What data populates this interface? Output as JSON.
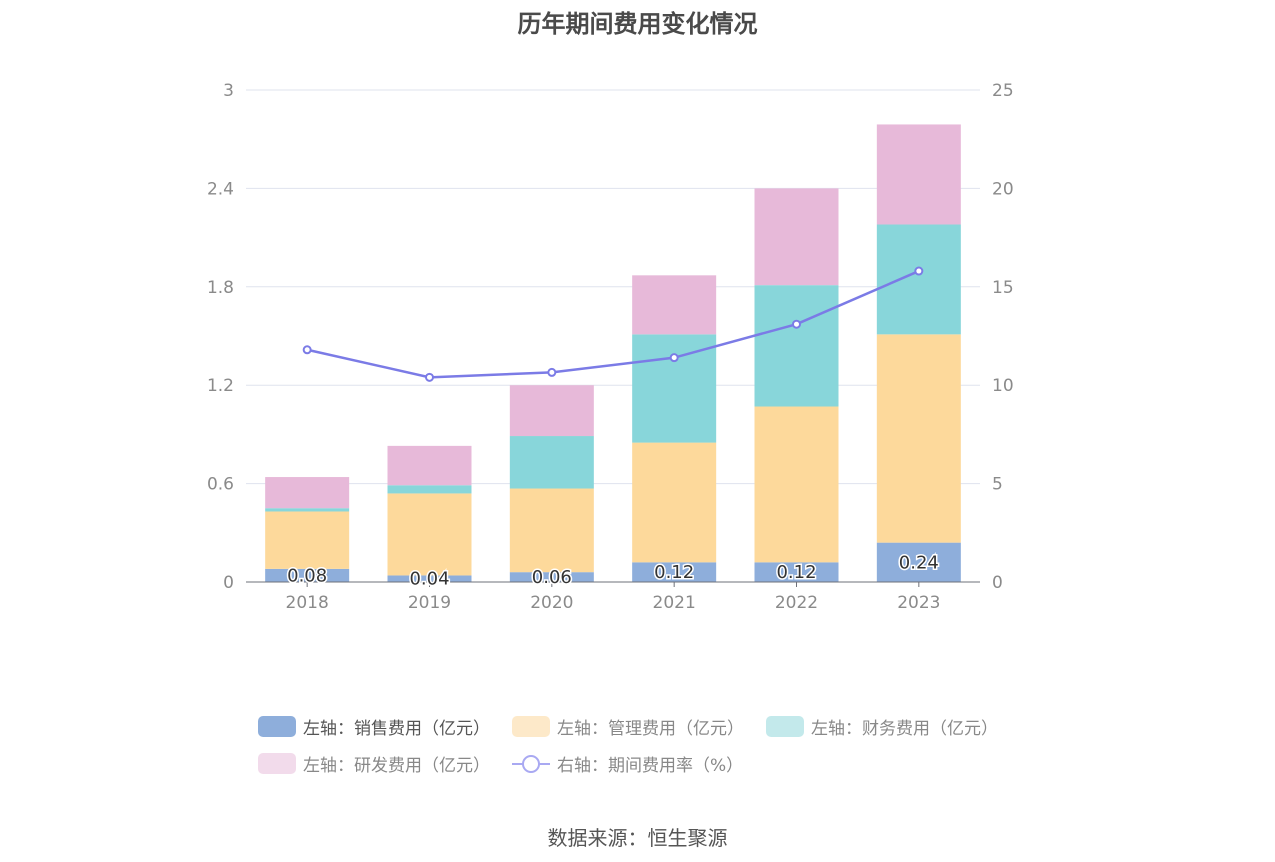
{
  "chart_data": {
    "type": "bar",
    "title": "历年期间费用变化情况",
    "categories": [
      "2018",
      "2019",
      "2020",
      "2021",
      "2022",
      "2023"
    ],
    "left_axis": {
      "ticks": [
        "0",
        "0.6",
        "1.2",
        "1.8",
        "2.4",
        "3"
      ],
      "ylim": [
        0,
        3
      ]
    },
    "right_axis": {
      "ticks": [
        "0",
        "5",
        "10",
        "15",
        "20",
        "25"
      ],
      "ylim": [
        0,
        25
      ]
    },
    "series": [
      {
        "name": "左轴：销售费用（亿元）",
        "axis": "left",
        "stacked": true,
        "color": "#8eaedb",
        "values": [
          0.08,
          0.04,
          0.06,
          0.12,
          0.12,
          0.24
        ],
        "labels": [
          "0.08",
          "0.04",
          "0.06",
          "0.12",
          "0.12",
          "0.24"
        ]
      },
      {
        "name": "左轴：管理费用（亿元）",
        "axis": "left",
        "stacked": true,
        "color": "#fdd99b",
        "values": [
          0.35,
          0.5,
          0.51,
          0.73,
          0.95,
          1.27
        ]
      },
      {
        "name": "左轴：财务费用（亿元）",
        "axis": "left",
        "stacked": true,
        "color": "#88d6da",
        "values": [
          0.02,
          0.05,
          0.32,
          0.66,
          0.74,
          0.67
        ]
      },
      {
        "name": "左轴：研发费用（亿元）",
        "axis": "left",
        "stacked": true,
        "color": "#e7b9d9",
        "values": [
          0.19,
          0.24,
          0.31,
          0.36,
          0.59,
          0.61
        ]
      },
      {
        "name": "右轴：期间费用率（%）",
        "axis": "right",
        "type": "line",
        "color": "#7b7be6",
        "values": [
          11.8,
          10.4,
          10.65,
          11.4,
          13.1,
          15.8
        ]
      }
    ],
    "grid": true,
    "legend_position": "bottom"
  },
  "footer": {
    "source": "数据来源：恒生聚源"
  }
}
